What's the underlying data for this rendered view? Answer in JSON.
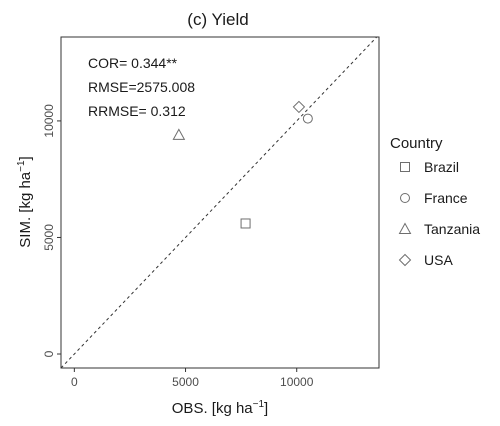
{
  "chart_data": {
    "type": "scatter",
    "title": "(c) Yield",
    "xlabel": "OBS. [kg ha",
    "xlabel_sup": "−1",
    "xlabel_close": "]",
    "ylabel": "SIM. [kg ha",
    "ylabel_sup": "−1",
    "ylabel_close": "]",
    "xlim": [
      -600,
      13700
    ],
    "ylim": [
      -600,
      13600
    ],
    "xticks": [
      0,
      5000,
      10000
    ],
    "yticks": [
      0,
      5000,
      10000
    ],
    "xtick_labels": [
      "0",
      "5000",
      "10000"
    ],
    "ytick_labels": [
      "0",
      "5000",
      "10000"
    ],
    "reference_line": "1:1 dashed",
    "grid": false,
    "legend_position": "right",
    "annotations": [
      "COR= 0.344**",
      "RMSE=2575.008",
      "RRMSE= 0.312"
    ],
    "legend_title": "Country",
    "series": [
      {
        "name": "Brazil",
        "marker": "square",
        "points": [
          [
            7700,
            5600
          ]
        ]
      },
      {
        "name": "France",
        "marker": "circle",
        "points": [
          [
            10500,
            10100
          ]
        ]
      },
      {
        "name": "Tanzania",
        "marker": "triangle",
        "points": [
          [
            4700,
            9400
          ]
        ]
      },
      {
        "name": "USA",
        "marker": "diamond",
        "points": [
          [
            10100,
            10600
          ]
        ]
      }
    ]
  }
}
